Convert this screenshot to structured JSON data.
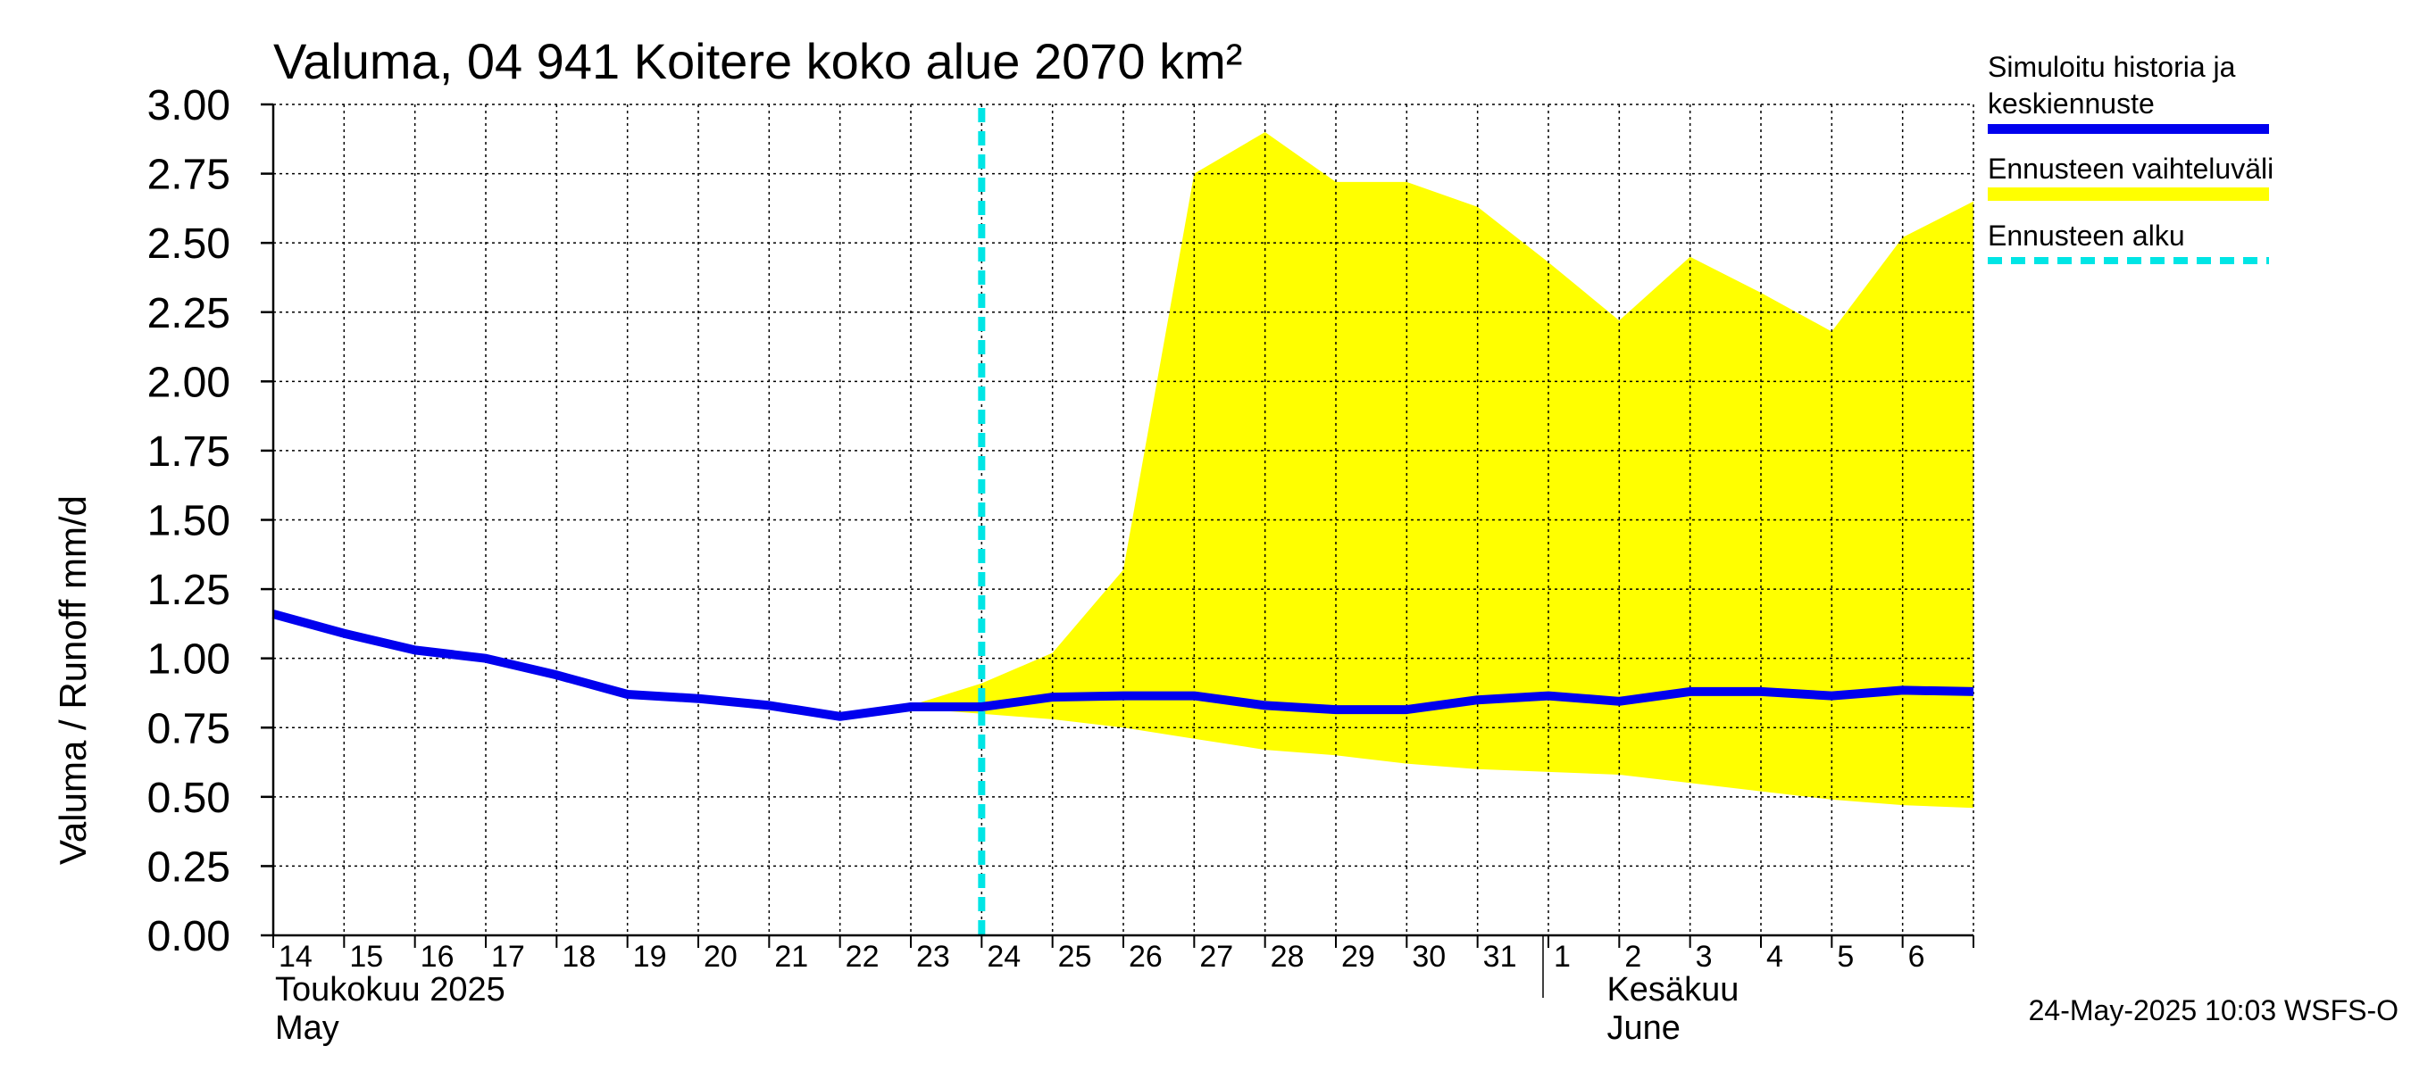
{
  "chart_data": {
    "type": "line",
    "title": "Valuma, 04 941 Koitere koko alue 2070 km²",
    "ylabel": "Valuma / Runoff     mm/d",
    "ylim": [
      0,
      3
    ],
    "yticks": [
      "0.00",
      "0.25",
      "0.50",
      "0.75",
      "1.00",
      "1.25",
      "1.50",
      "1.75",
      "2.00",
      "2.25",
      "2.50",
      "2.75",
      "3.00"
    ],
    "ytick_values": [
      0,
      0.25,
      0.5,
      0.75,
      1.0,
      1.25,
      1.5,
      1.75,
      2.0,
      2.25,
      2.5,
      2.75,
      3.0
    ],
    "x_day_range": [
      0,
      24
    ],
    "x_labels": [
      {
        "day": 0,
        "label": "14"
      },
      {
        "day": 1,
        "label": "15"
      },
      {
        "day": 2,
        "label": "16"
      },
      {
        "day": 3,
        "label": "17"
      },
      {
        "day": 4,
        "label": "18"
      },
      {
        "day": 5,
        "label": "19"
      },
      {
        "day": 6,
        "label": "20"
      },
      {
        "day": 7,
        "label": "21"
      },
      {
        "day": 8,
        "label": "22"
      },
      {
        "day": 9,
        "label": "23"
      },
      {
        "day": 10,
        "label": "24"
      },
      {
        "day": 11,
        "label": "25"
      },
      {
        "day": 12,
        "label": "26"
      },
      {
        "day": 13,
        "label": "27"
      },
      {
        "day": 14,
        "label": "28"
      },
      {
        "day": 15,
        "label": "29"
      },
      {
        "day": 16,
        "label": "30"
      },
      {
        "day": 17,
        "label": "31"
      },
      {
        "day": 18,
        "label": "1"
      },
      {
        "day": 19,
        "label": "2"
      },
      {
        "day": 20,
        "label": "3"
      },
      {
        "day": 21,
        "label": "4"
      },
      {
        "day": 22,
        "label": "5"
      },
      {
        "day": 23,
        "label": "6"
      }
    ],
    "month_labels": [
      {
        "day": 0,
        "line1": "Toukokuu  2025",
        "line2": "May"
      },
      {
        "day": 18.8,
        "line1": "Kesäkuu",
        "line2": "June"
      }
    ],
    "month_boundary_day": 18,
    "forecast_start_day": 10,
    "series": [
      {
        "name": "Simuloitu historia ja keskiennuste",
        "color": "#0000ee",
        "x": [
          0,
          1,
          2,
          3,
          4,
          5,
          6,
          7,
          8,
          9,
          10,
          11,
          12,
          13,
          14,
          15,
          16,
          17,
          18,
          19,
          20,
          21,
          22,
          23,
          24
        ],
        "values": [
          1.16,
          1.09,
          1.03,
          1.0,
          0.94,
          0.87,
          0.855,
          0.83,
          0.79,
          0.825,
          0.825,
          0.86,
          0.865,
          0.865,
          0.83,
          0.815,
          0.815,
          0.85,
          0.865,
          0.845,
          0.88,
          0.88,
          0.865,
          0.885,
          0.88
        ]
      }
    ],
    "band": {
      "name": "Ennusteen vaihteluväli",
      "color": "#ffff00",
      "x": [
        9,
        10,
        11,
        12,
        13,
        14,
        15,
        16,
        17,
        18,
        19,
        20,
        21,
        22,
        23,
        24
      ],
      "upper": [
        0.83,
        0.91,
        1.02,
        1.32,
        2.75,
        2.9,
        2.72,
        2.72,
        2.63,
        2.43,
        2.22,
        2.45,
        2.32,
        2.18,
        2.52,
        2.65
      ],
      "lower": [
        0.82,
        0.8,
        0.78,
        0.75,
        0.71,
        0.67,
        0.65,
        0.62,
        0.6,
        0.59,
        0.58,
        0.55,
        0.52,
        0.49,
        0.47,
        0.46
      ]
    },
    "legend": [
      {
        "label": "Simuloitu historia ja keskiennuste",
        "line1": "Simuloitu historia ja",
        "line2": "keskiennuste",
        "color": "#0000ee",
        "style": "solid"
      },
      {
        "label": "Ennusteen vaihteluväli",
        "color": "#ffff00",
        "style": "solid"
      },
      {
        "label": "Ennusteen alku",
        "color": "#00e5e5",
        "style": "dashed"
      }
    ]
  },
  "footer": {
    "timestamp": "24-May-2025 10:03 WSFS-O"
  }
}
